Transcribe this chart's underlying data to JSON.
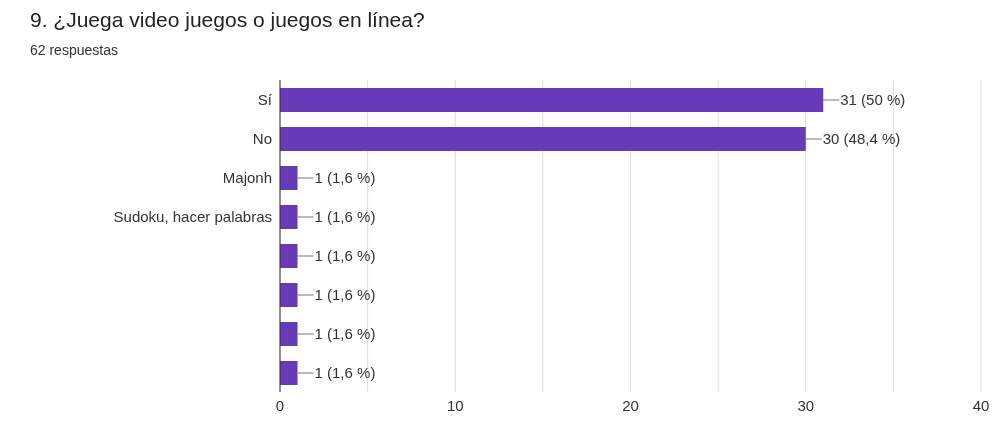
{
  "chart_data": {
    "type": "bar",
    "orientation": "horizontal",
    "title": "9. ¿Juega video juegos o juegos en línea?",
    "subtitle": "62 respuestas",
    "categories": [
      "Sí",
      "No",
      "Majonh",
      "Sudoku, hacer palabras",
      null,
      null,
      null,
      null
    ],
    "values": [
      31,
      30,
      1,
      1,
      1,
      1,
      1,
      1
    ],
    "value_labels": [
      "31 (50 %)",
      "30 (48,4 %)",
      "1 (1,6 %)",
      "1 (1,6 %)",
      "1 (1,6 %)",
      "1 (1,6 %)",
      "1 (1,6 %)",
      "1 (1,6 %)"
    ],
    "color": "#673ab7",
    "xlim": [
      0,
      40
    ],
    "xticks": [
      0,
      {
        "value": 5,
        "label": null
      },
      10,
      {
        "value": 15,
        "label": null
      },
      20,
      {
        "value": 25,
        "label": null
      },
      30,
      {
        "value": 35,
        "label": null
      },
      40
    ],
    "grid": "x",
    "legend": false
  }
}
